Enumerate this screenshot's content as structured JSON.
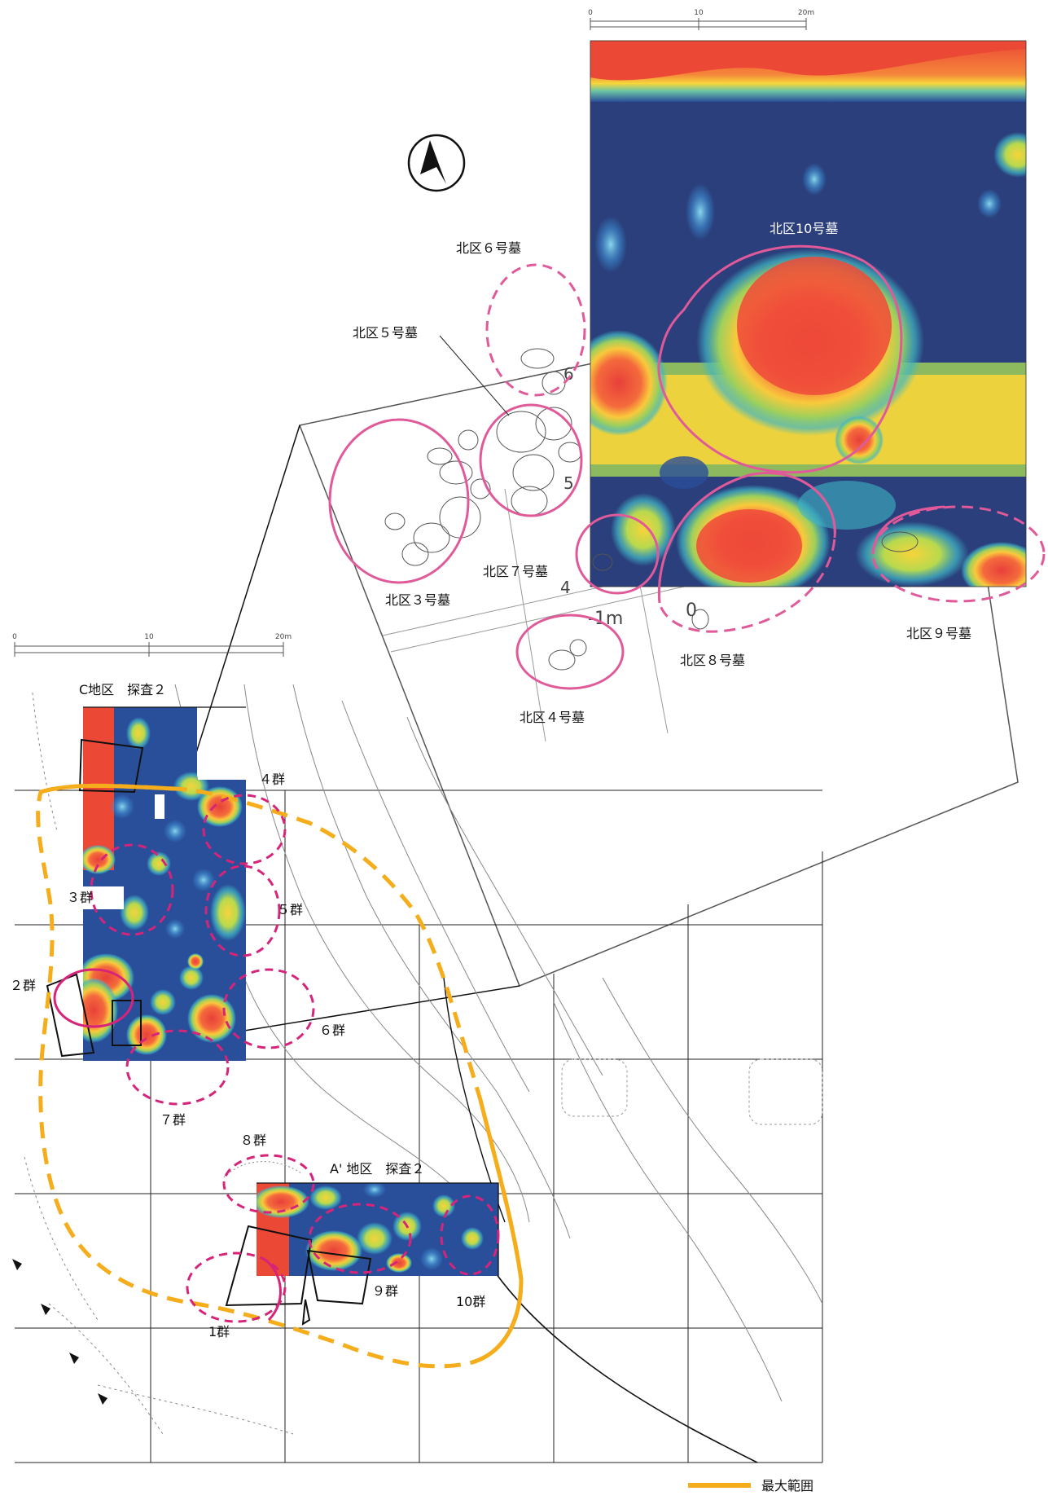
{
  "top_panel": {
    "scale": {
      "ticks": [
        "0",
        "10",
        "20m"
      ]
    },
    "grid_numbers": [
      "6",
      "5",
      "4",
      "-1m",
      "0"
    ],
    "tombs": [
      {
        "id": "t6",
        "label": "北区６号墓",
        "outline": "dashed"
      },
      {
        "id": "t5",
        "label": "北区５号墓",
        "outline": "solid"
      },
      {
        "id": "t3",
        "label": "北区３号墓",
        "outline": "solid"
      },
      {
        "id": "t7",
        "label": "北区７号墓",
        "outline": "solid"
      },
      {
        "id": "t4",
        "label": "北区４号墓",
        "outline": "solid"
      },
      {
        "id": "t8",
        "label": "北区８号墓",
        "outline": "mixed"
      },
      {
        "id": "t9",
        "label": "北区９号墓",
        "outline": "dashed"
      },
      {
        "id": "t10",
        "label": "北区10号墓",
        "outline": "solid"
      }
    ]
  },
  "bottom_panel": {
    "scale": {
      "ticks": [
        "0",
        "10",
        "20m"
      ]
    },
    "survey_areas": [
      {
        "id": "c",
        "label": "C地区　探査２"
      },
      {
        "id": "a",
        "label": "A' 地区　探査２"
      }
    ],
    "groups": [
      {
        "id": "g1",
        "label": "1群"
      },
      {
        "id": "g2",
        "label": "２群"
      },
      {
        "id": "g3",
        "label": "３群"
      },
      {
        "id": "g4",
        "label": "４群"
      },
      {
        "id": "g5",
        "label": "５群"
      },
      {
        "id": "g6",
        "label": "６群"
      },
      {
        "id": "g7",
        "label": "７群"
      },
      {
        "id": "g8",
        "label": "８群"
      },
      {
        "id": "g9",
        "label": "９群"
      },
      {
        "id": "g10",
        "label": "10群"
      }
    ]
  },
  "legend": {
    "label": "最大範囲",
    "color": "#f5ad1c"
  },
  "colors": {
    "pink_outline": "#e05a9a",
    "magenta_dashed": "#d6247a",
    "orange_range": "#f5ad1c",
    "low_response": "#2a3f7c",
    "high_response": "#ee4a3a"
  },
  "north_arrow": {
    "icon": "north-arrow-icon"
  }
}
